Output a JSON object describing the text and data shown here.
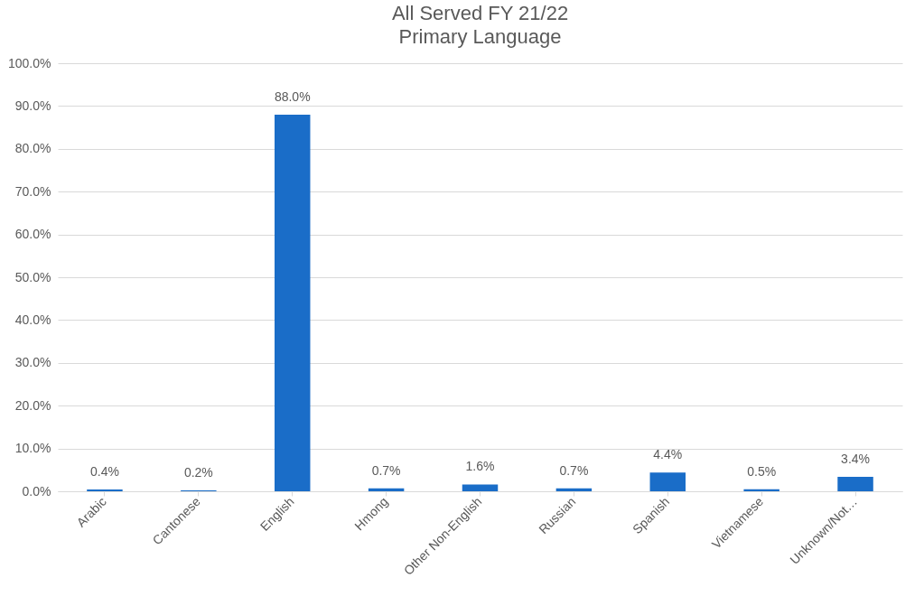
{
  "chart_data": {
    "type": "bar",
    "title": "All Served FY 21/22",
    "subtitle": "Primary Language",
    "categories": [
      "Arabic",
      "Cantonese",
      "English",
      "Hmong",
      "Other Non-English",
      "Russian",
      "Spanish",
      "Vietnamese",
      "Unknown/Not…"
    ],
    "values": [
      0.4,
      0.2,
      88.0,
      0.7,
      1.6,
      0.7,
      4.4,
      0.5,
      3.4
    ],
    "value_labels": [
      "0.4%",
      "0.2%",
      "88.0%",
      "0.7%",
      "1.6%",
      "0.7%",
      "4.4%",
      "0.5%",
      "3.4%"
    ],
    "color": "#1a6dc8",
    "ylim": [
      0,
      100
    ],
    "yticks": [
      {
        "value": 0,
        "label": "0.0%"
      },
      {
        "value": 10,
        "label": "10.0%"
      },
      {
        "value": 20,
        "label": "20.0%"
      },
      {
        "value": 30,
        "label": "30.0%"
      },
      {
        "value": 40,
        "label": "40.0%"
      },
      {
        "value": 50,
        "label": "50.0%"
      },
      {
        "value": 60,
        "label": "60.0%"
      },
      {
        "value": 70,
        "label": "70.0%"
      },
      {
        "value": 80,
        "label": "80.0%"
      },
      {
        "value": 90,
        "label": "90.0%"
      },
      {
        "value": 100,
        "label": "100.0%"
      }
    ],
    "grid": "y"
  }
}
